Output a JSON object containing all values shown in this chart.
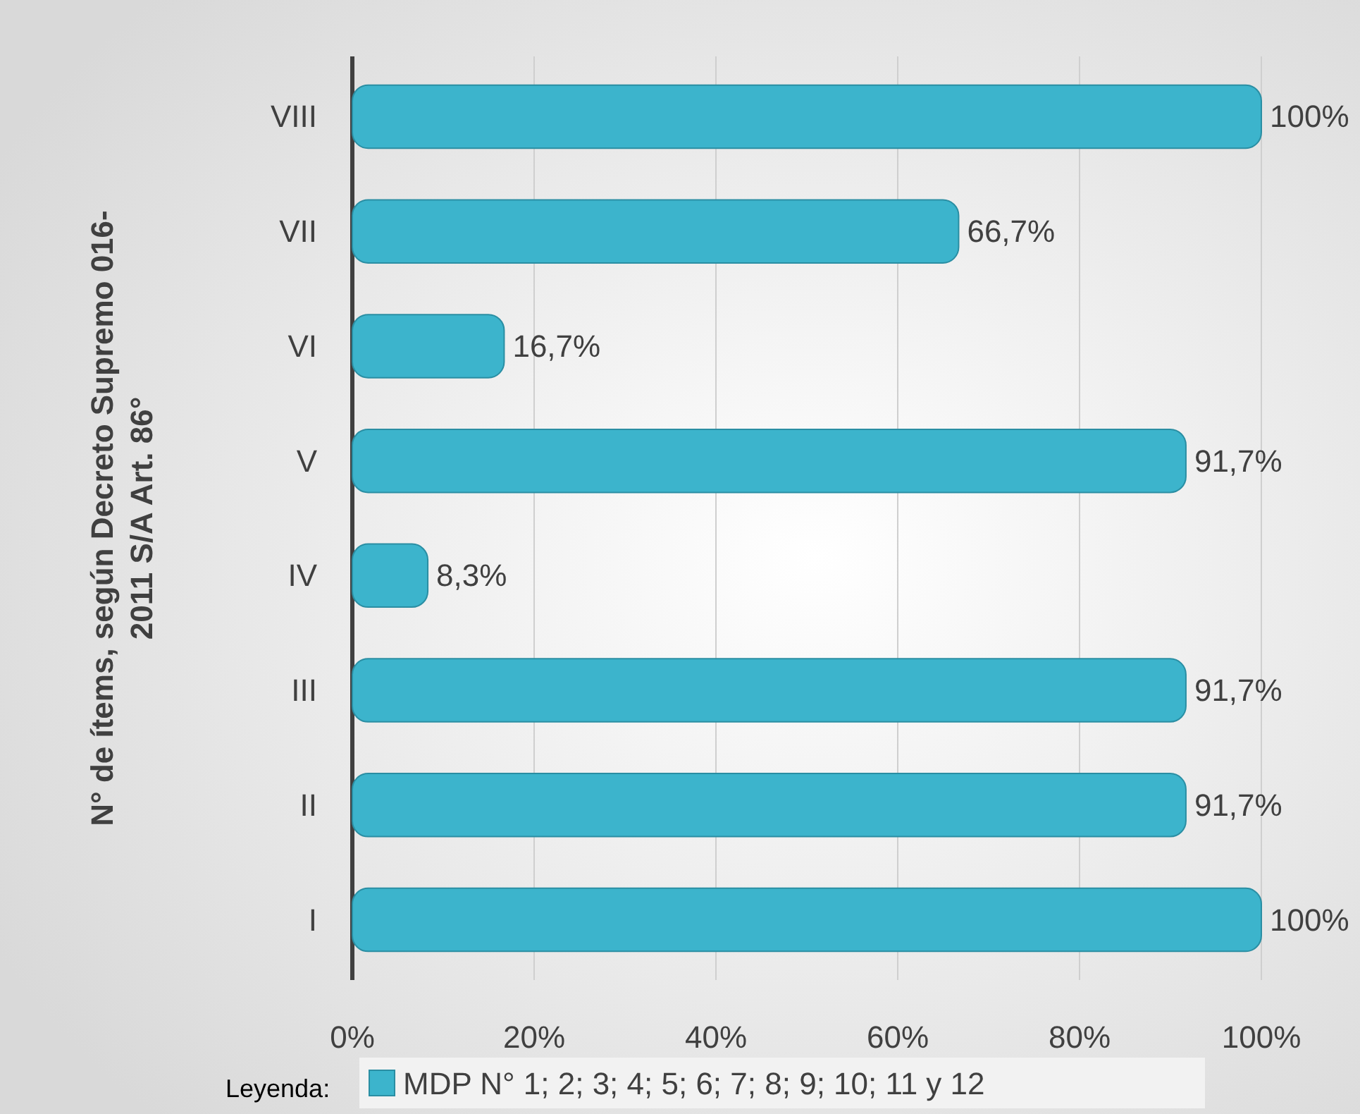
{
  "chart_data": {
    "type": "bar",
    "orientation": "horizontal",
    "ylabel": "N° de ítems, según Decreto Supremo 016-2011 S/A Art. 86°",
    "categories": [
      "VIII",
      "VII",
      "VI",
      "V",
      "IV",
      "III",
      "II",
      "I"
    ],
    "series": [
      {
        "name": "MDP N° 1; 2; 3; 4; 5; 6; 7; 8; 9; 10; 11 y 12",
        "color": "#3cb4cc",
        "values": [
          100,
          66.7,
          16.7,
          91.7,
          8.3,
          91.7,
          91.7,
          100
        ],
        "value_labels": [
          "100%",
          "66,7%",
          "16,7%",
          "91,7%",
          "8,3%",
          "91,7%",
          "91,7%",
          "100%"
        ]
      }
    ],
    "xlim": [
      0,
      100
    ],
    "xticks": [
      {
        "value": 0,
        "label": "0%"
      },
      {
        "value": 20,
        "label": "20%"
      },
      {
        "value": 40,
        "label": "40%"
      },
      {
        "value": 60,
        "label": "60%"
      },
      {
        "value": 80,
        "label": "80%"
      },
      {
        "value": 100,
        "label": "100%"
      }
    ],
    "grid": "x",
    "legend": "bottom",
    "legend_title": "Leyenda:"
  }
}
